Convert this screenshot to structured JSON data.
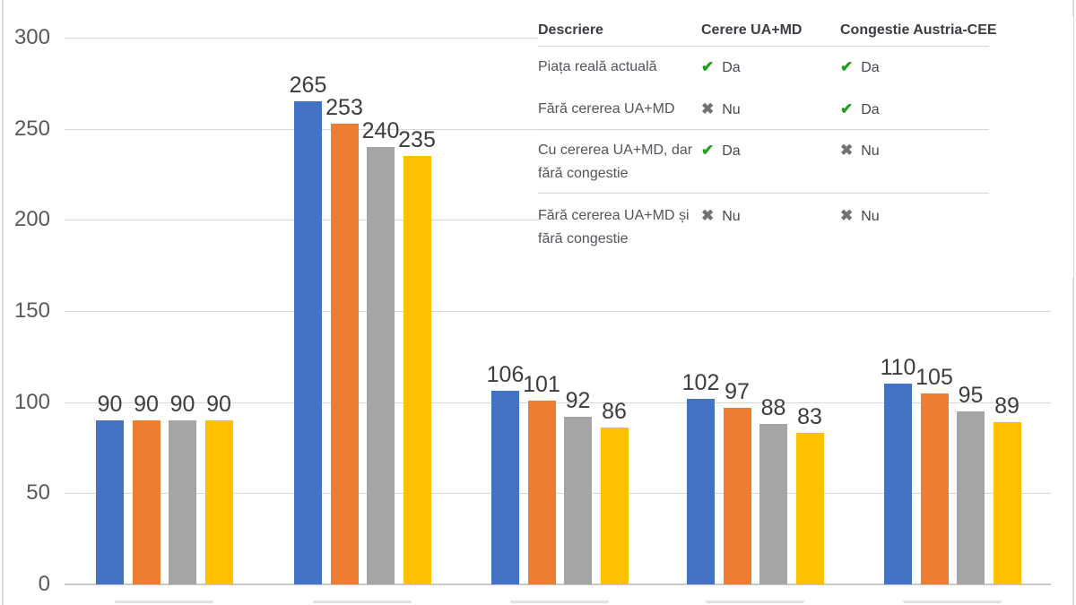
{
  "chart_data": {
    "type": "bar",
    "title": "",
    "xlabel": "",
    "ylabel": "",
    "ylim": [
      0,
      300
    ],
    "yticks": [
      0,
      50,
      100,
      150,
      200,
      250,
      300
    ],
    "grid": true,
    "legend_position": "none-visible (x-axis category labels clipped at bottom edge)",
    "categories": [
      "",
      "",
      "",
      "",
      ""
    ],
    "series": [
      {
        "name": "series-blue",
        "color": "#4472C4",
        "values": [
          90,
          265,
          106,
          102,
          110
        ]
      },
      {
        "name": "series-orange",
        "color": "#ED7D31",
        "values": [
          90,
          253,
          101,
          97,
          105
        ]
      },
      {
        "name": "series-gray",
        "color": "#A5A5A5",
        "values": [
          90,
          240,
          92,
          88,
          95
        ]
      },
      {
        "name": "series-yellow",
        "color": "#FFC000",
        "values": [
          90,
          235,
          86,
          83,
          89
        ]
      }
    ]
  },
  "table": {
    "headers": [
      "Descriere",
      "Cerere UA+MD",
      "Congestie Austria-CEE"
    ],
    "rows": [
      {
        "label": "Piața reală actuală",
        "cells": [
          {
            "yes": true,
            "text": "Da"
          },
          {
            "yes": true,
            "text": "Da"
          }
        ]
      },
      {
        "label": "Fără cererea UA+MD",
        "cells": [
          {
            "yes": false,
            "text": "Nu"
          },
          {
            "yes": true,
            "text": "Da"
          }
        ]
      },
      {
        "label": "Cu cererea UA+MD, dar fără congestie",
        "cells": [
          {
            "yes": true,
            "text": "Da"
          },
          {
            "yes": false,
            "text": "Nu"
          }
        ]
      },
      {
        "label": "Fără cererea UA+MD și fără congestie",
        "cells": [
          {
            "yes": false,
            "text": "Nu"
          },
          {
            "yes": false,
            "text": "Nu"
          }
        ]
      }
    ],
    "yes_icon": "check-icon",
    "no_icon": "cross-icon",
    "check_glyph": "✔",
    "cross_glyph": "✖",
    "check_color": "#1f9e1f",
    "cross_color": "#737373"
  },
  "colors": {
    "gridline": "#d9d9d9",
    "axis_line": "#c9c9c9",
    "tick_text": "#595959",
    "data_label_text": "#3d3d3d",
    "border_line": "#d9d9d9"
  }
}
